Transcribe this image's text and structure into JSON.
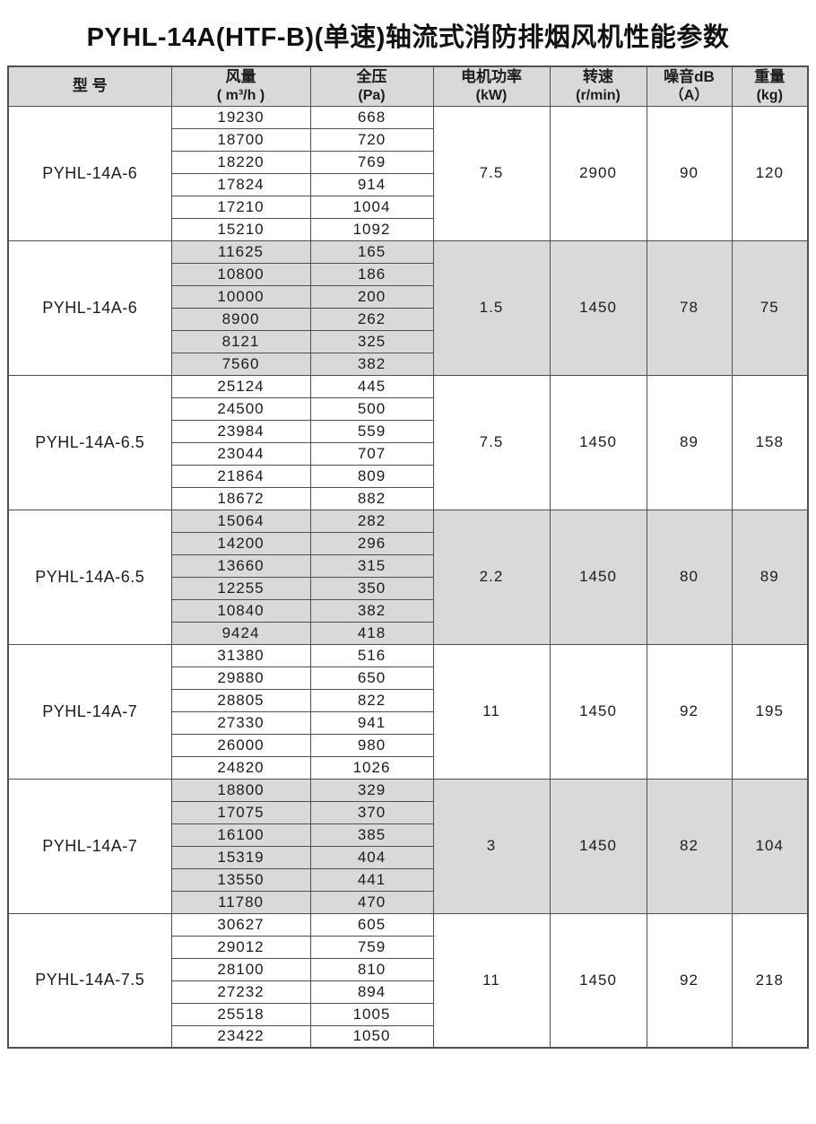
{
  "title": "PYHL-14A(HTF-B)(单速)轴流式消防排烟风机性能参数",
  "colors": {
    "header_bg": "#d9d9d9",
    "shaded_block_bg": "#d9d9d9",
    "border": "#4f4f4f",
    "text": "#1c1c1c"
  },
  "table": {
    "columns": [
      {
        "id": "model",
        "line1": "型  号",
        "line2": ""
      },
      {
        "id": "flow",
        "line1": "风量",
        "line2": "( m³/h )"
      },
      {
        "id": "pressure",
        "line1": "全压",
        "line2": "(Pa)"
      },
      {
        "id": "power",
        "line1": "电机功率",
        "line2": "(kW)"
      },
      {
        "id": "speed",
        "line1": "转速",
        "line2": "(r/min)"
      },
      {
        "id": "noise",
        "line1": "噪音dB",
        "line2": "（A）"
      },
      {
        "id": "weight",
        "line1": "重量",
        "line2": "(kg)"
      }
    ],
    "groups": [
      {
        "model": "PYHL-14A-6",
        "shaded": false,
        "power": "7.5",
        "speed": "2900",
        "noise": "90",
        "weight": "120",
        "rows": [
          [
            "19230",
            "668"
          ],
          [
            "18700",
            "720"
          ],
          [
            "18220",
            "769"
          ],
          [
            "17824",
            "914"
          ],
          [
            "17210",
            "1004"
          ],
          [
            "15210",
            "1092"
          ]
        ]
      },
      {
        "model": "PYHL-14A-6",
        "shaded": true,
        "power": "1.5",
        "speed": "1450",
        "noise": "78",
        "weight": "75",
        "rows": [
          [
            "11625",
            "165"
          ],
          [
            "10800",
            "186"
          ],
          [
            "10000",
            "200"
          ],
          [
            "8900",
            "262"
          ],
          [
            "8121",
            "325"
          ],
          [
            "7560",
            "382"
          ]
        ]
      },
      {
        "model": "PYHL-14A-6.5",
        "shaded": false,
        "power": "7.5",
        "speed": "1450",
        "noise": "89",
        "weight": "158",
        "rows": [
          [
            "25124",
            "445"
          ],
          [
            "24500",
            "500"
          ],
          [
            "23984",
            "559"
          ],
          [
            "23044",
            "707"
          ],
          [
            "21864",
            "809"
          ],
          [
            "18672",
            "882"
          ]
        ]
      },
      {
        "model": "PYHL-14A-6.5",
        "shaded": true,
        "power": "2.2",
        "speed": "1450",
        "noise": "80",
        "weight": "89",
        "rows": [
          [
            "15064",
            "282"
          ],
          [
            "14200",
            "296"
          ],
          [
            "13660",
            "315"
          ],
          [
            "12255",
            "350"
          ],
          [
            "10840",
            "382"
          ],
          [
            "9424",
            "418"
          ]
        ]
      },
      {
        "model": "PYHL-14A-7",
        "shaded": false,
        "power": "11",
        "speed": "1450",
        "noise": "92",
        "weight": "195",
        "rows": [
          [
            "31380",
            "516"
          ],
          [
            "29880",
            "650"
          ],
          [
            "28805",
            "822"
          ],
          [
            "27330",
            "941"
          ],
          [
            "26000",
            "980"
          ],
          [
            "24820",
            "1026"
          ]
        ]
      },
      {
        "model": "PYHL-14A-7",
        "shaded": true,
        "power": "3",
        "speed": "1450",
        "noise": "82",
        "weight": "104",
        "rows": [
          [
            "18800",
            "329"
          ],
          [
            "17075",
            "370"
          ],
          [
            "16100",
            "385"
          ],
          [
            "15319",
            "404"
          ],
          [
            "13550",
            "441"
          ],
          [
            "11780",
            "470"
          ]
        ]
      },
      {
        "model": "PYHL-14A-7.5",
        "shaded": false,
        "power": "11",
        "speed": "1450",
        "noise": "92",
        "weight": "218",
        "rows": [
          [
            "30627",
            "605"
          ],
          [
            "29012",
            "759"
          ],
          [
            "28100",
            "810"
          ],
          [
            "27232",
            "894"
          ],
          [
            "25518",
            "1005"
          ],
          [
            "23422",
            "1050"
          ]
        ]
      }
    ]
  }
}
